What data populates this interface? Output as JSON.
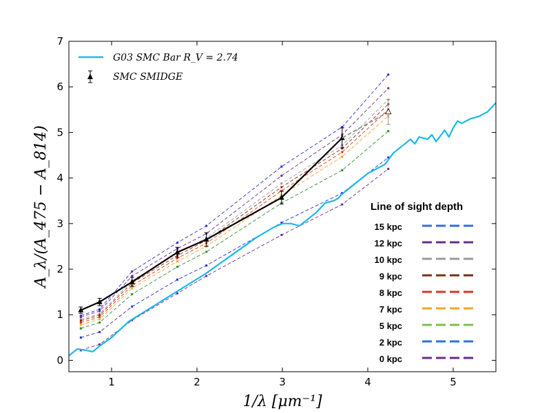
{
  "chart_data": {
    "type": "line",
    "xlabel": "1/λ [μm⁻¹]",
    "ylabel": "A_λ/(A_475 − A_814)",
    "xlim": [
      0.5,
      5.5
    ],
    "ylim": [
      -0.25,
      7
    ],
    "xticks": [
      1,
      2,
      3,
      4,
      5
    ],
    "yticks": [
      0,
      1,
      2,
      3,
      4,
      5,
      6,
      7
    ],
    "xtick_labels": [
      "1",
      "2",
      "3",
      "4",
      "5"
    ],
    "ytick_labels": [
      "0",
      "1",
      "2",
      "3",
      "4",
      "5",
      "6",
      "7"
    ],
    "grid": false,
    "legend": [
      {
        "label": "G03 SMC Bar R_V = 2.74",
        "color": "#19b9ec",
        "style": "line"
      },
      {
        "label": "SMC SMIDGE",
        "color": "#000000",
        "style": "errorbar-triangle"
      }
    ],
    "depth_legend": {
      "title": "Line of sight depth",
      "entries": [
        {
          "label": "15 kpc",
          "color": "#2b6fe8"
        },
        {
          "label": "12 kpc",
          "color": "#6b2a8a"
        },
        {
          "label": "10 kpc",
          "color": "#9a9a9a"
        },
        {
          "label": "9 kpc",
          "color": "#7a2e12"
        },
        {
          "label": "8 kpc",
          "color": "#e0321e"
        },
        {
          "label": "7 kpc",
          "color": "#f5a623"
        },
        {
          "label": "5 kpc",
          "color": "#7ac143"
        },
        {
          "label": "2 kpc",
          "color": "#2b6fe8"
        },
        {
          "label": "0 kpc",
          "color": "#6b2a8a"
        }
      ]
    },
    "g03_curve": {
      "color": "#19b9ec",
      "x": [
        0.5,
        0.6,
        0.7,
        0.78,
        0.85,
        1.0,
        1.2,
        1.5,
        1.8,
        2.1,
        2.4,
        2.7,
        2.9,
        3.0,
        3.1,
        3.2,
        3.3,
        3.4,
        3.5,
        3.6,
        3.65,
        3.7,
        3.8,
        3.9,
        4.0,
        4.1,
        4.2,
        4.3,
        4.4,
        4.5,
        4.55,
        4.6,
        4.7,
        4.75,
        4.8,
        4.9,
        4.95,
        5.0,
        5.05,
        5.1,
        5.15,
        5.2,
        5.3,
        5.4,
        5.45,
        5.5
      ],
      "y": [
        0.1,
        0.25,
        0.22,
        0.19,
        0.3,
        0.5,
        0.85,
        1.2,
        1.55,
        1.9,
        2.3,
        2.7,
        2.92,
        3.0,
        3.0,
        2.95,
        3.1,
        3.25,
        3.45,
        3.5,
        3.55,
        3.65,
        3.8,
        3.95,
        4.1,
        4.2,
        4.3,
        4.55,
        4.7,
        4.85,
        4.75,
        4.9,
        4.85,
        4.95,
        4.8,
        5.05,
        4.9,
        5.1,
        5.25,
        5.2,
        5.25,
        5.3,
        5.35,
        5.45,
        5.55,
        5.65
      ]
    },
    "smidge": {
      "color": "#000000",
      "x": [
        0.64,
        0.86,
        1.24,
        1.77,
        2.11,
        2.99,
        3.7
      ],
      "y": [
        1.1,
        1.28,
        1.72,
        2.37,
        2.65,
        3.57,
        4.88
      ],
      "yerr": [
        0.07,
        0.08,
        0.1,
        0.11,
        0.15,
        0.14,
        0.22
      ]
    },
    "smidge_extra": {
      "x": 4.24,
      "y": 5.45,
      "yerr": 0.27,
      "color": "#9a9a9a"
    },
    "model_x": [
      0.64,
      0.86,
      1.24,
      1.77,
      2.11,
      2.99,
      3.7,
      4.24
    ],
    "models": [
      {
        "name": "15 kpc",
        "color": "#2b2bd9",
        "y": [
          0.98,
          1.12,
          1.95,
          2.58,
          2.95,
          4.25,
          5.12,
          6.27
        ]
      },
      {
        "name": "12 kpc",
        "color": "#6b2a8a",
        "y": [
          0.95,
          1.08,
          1.85,
          2.45,
          2.78,
          4.05,
          4.95,
          5.97
        ]
      },
      {
        "name": "10 kpc",
        "color": "#9a9a9a",
        "y": [
          0.9,
          1.02,
          1.75,
          2.35,
          2.68,
          3.88,
          4.72,
          5.72
        ]
      },
      {
        "name": "9 kpc",
        "color": "#7a2e12",
        "y": [
          0.87,
          0.99,
          1.7,
          2.3,
          2.63,
          3.8,
          4.65,
          5.62
        ]
      },
      {
        "name": "8 kpc",
        "color": "#e0321e",
        "y": [
          0.83,
          0.95,
          1.64,
          2.24,
          2.57,
          3.72,
          4.57,
          5.5
        ]
      },
      {
        "name": "7 kpc",
        "color": "#f5a623",
        "y": [
          0.78,
          0.9,
          1.58,
          2.17,
          2.5,
          3.62,
          4.47,
          5.36
        ]
      },
      {
        "name": "5 kpc",
        "color": "#2e8b2e",
        "y": [
          0.7,
          0.83,
          1.45,
          2.05,
          2.38,
          3.45,
          4.17,
          5.03
        ]
      },
      {
        "name": "2 kpc",
        "color": "#2b2bd9",
        "y": [
          0.5,
          0.62,
          1.18,
          1.77,
          2.08,
          3.02,
          3.67,
          4.45
        ]
      },
      {
        "name": "0 kpc",
        "color": "#6b2a8a",
        "y": [
          0.22,
          0.35,
          0.88,
          1.47,
          1.85,
          2.75,
          3.42,
          4.2
        ]
      }
    ]
  }
}
